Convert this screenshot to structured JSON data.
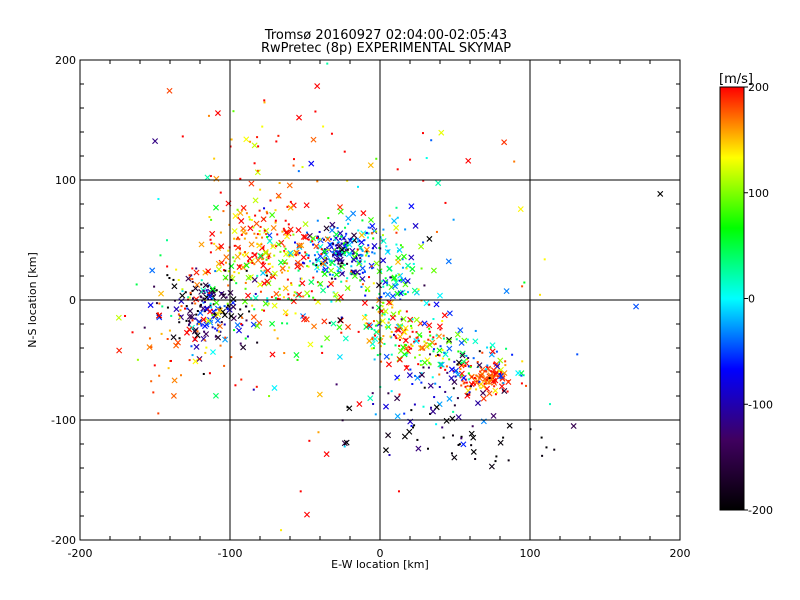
{
  "chart_data": {
    "type": "scatter",
    "title": "Tromsø 20160927 02:04:00-02:05:43",
    "subtitle": "RwPretec (8p) EXPERIMENTAL SKYMAP",
    "xlabel": "E-W location [km]",
    "ylabel": "N-S location [km]",
    "xlim": [
      -200,
      200
    ],
    "ylim": [
      -200,
      200
    ],
    "xticks": [
      -200,
      -100,
      0,
      100,
      200
    ],
    "yticks": [
      -200,
      -100,
      0,
      100,
      200
    ],
    "x_tick_labels": [
      "-200",
      "-100",
      "0",
      "100",
      "200"
    ],
    "y_tick_labels": [
      "-200",
      "-100",
      "0",
      "100",
      "200"
    ],
    "grid": true,
    "colorbar": {
      "label": "[m/s]",
      "range": [
        -200,
        200
      ],
      "ticks": [
        200,
        100,
        0,
        -100,
        -200
      ],
      "tick_labels": [
        "200",
        "100",
        "0",
        "-100",
        "-200"
      ],
      "colormap": [
        "#000000",
        "#400060",
        "#0000ff",
        "#00ffff",
        "#00ff00",
        "#ffff00",
        "#ff0000"
      ]
    },
    "markers": {
      "small": "dot",
      "large": "x"
    },
    "clusters": [
      {
        "x": -25,
        "y": 40,
        "sx": 14,
        "sy": 12,
        "n": 230,
        "v": -60,
        "vs": 70
      },
      {
        "x": -80,
        "y": 45,
        "sx": 22,
        "sy": 22,
        "n": 210,
        "v": 170,
        "vs": 45
      },
      {
        "x": -115,
        "y": -10,
        "sx": 16,
        "sy": 16,
        "n": 170,
        "v": -130,
        "vs": 90
      },
      {
        "x": -60,
        "y": 15,
        "sx": 30,
        "sy": 25,
        "n": 150,
        "v": 110,
        "vs": 90
      },
      {
        "x": 5,
        "y": 15,
        "sx": 12,
        "sy": 30,
        "n": 120,
        "v": 30,
        "vs": 80
      },
      {
        "x": 20,
        "y": -30,
        "sx": 18,
        "sy": 14,
        "n": 140,
        "v": 130,
        "vs": 100
      },
      {
        "x": 70,
        "y": -65,
        "sx": 10,
        "sy": 8,
        "n": 110,
        "v": 185,
        "vs": 25
      },
      {
        "x": 55,
        "y": -55,
        "sx": 20,
        "sy": 12,
        "n": 90,
        "v": 10,
        "vs": 90
      },
      {
        "x": 30,
        "y": -85,
        "sx": 30,
        "sy": 20,
        "n": 60,
        "v": -120,
        "vs": 90
      },
      {
        "x": 65,
        "y": -120,
        "sx": 25,
        "sy": 10,
        "n": 30,
        "v": -200,
        "vs": 10
      },
      {
        "x": -130,
        "y": -30,
        "sx": 20,
        "sy": 25,
        "n": 70,
        "v": 180,
        "vs": 30
      },
      {
        "x": -40,
        "y": 130,
        "sx": 60,
        "sy": 25,
        "n": 40,
        "v": 180,
        "vs": 40
      },
      {
        "x": 0,
        "y": 0,
        "sx": 80,
        "sy": 80,
        "n": 90,
        "v": 60,
        "vs": 140
      }
    ]
  }
}
